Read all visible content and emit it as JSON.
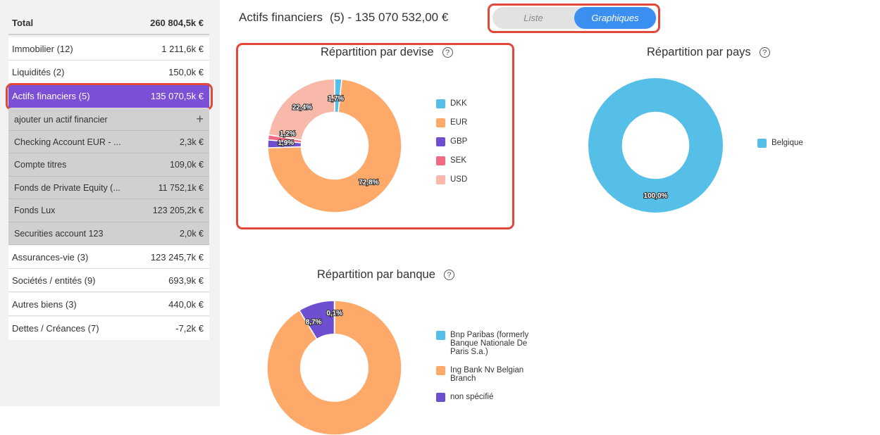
{
  "sidebar": {
    "total": {
      "label": "Total",
      "value": "260 804,5k €"
    },
    "items": [
      {
        "label": "Immobilier (12)",
        "value": "1 211,6k €"
      },
      {
        "label": "Liquidités (2)",
        "value": "150,0k €"
      },
      {
        "label": "Actifs financiers (5)",
        "value": "135 070,5k €"
      }
    ],
    "sub_add": "ajouter un actif financier",
    "sub_items": [
      {
        "label": "Checking Account EUR - ...",
        "value": "2,3k €"
      },
      {
        "label": "Compte titres",
        "value": "109,0k €"
      },
      {
        "label": "Fonds de Private Equity (...",
        "value": "11 752,1k €"
      },
      {
        "label": "Fonds Lux",
        "value": "123 205,2k €"
      },
      {
        "label": "Securities account 123",
        "value": "2,0k €"
      }
    ],
    "items_after": [
      {
        "label": "Assurances-vie (3)",
        "value": "123 245,7k €"
      },
      {
        "label": "Sociétés / entités (9)",
        "value": "693,9k €"
      },
      {
        "label": "Autres biens (3)",
        "value": "440,0k €"
      },
      {
        "label": "Dettes / Créances (7)",
        "value": "-7,2k €"
      }
    ]
  },
  "header": {
    "title": "Actifs financiers",
    "count": "(5) - 135 070 532,00 €",
    "toggle": {
      "list": "Liste",
      "charts": "Graphiques"
    }
  },
  "colors": {
    "accent": "#7b4fd6",
    "highlight": "#e0483a",
    "toggle_on": "#3b8ff0"
  },
  "chart_data": [
    {
      "type": "pie",
      "title": "Répartition par devise",
      "categories": [
        "DKK",
        "EUR",
        "GBP",
        "SEK",
        "USD"
      ],
      "values": [
        1.7,
        72.8,
        1.9,
        1.2,
        22.4
      ],
      "labels": [
        "1,7%",
        "72,8%",
        "1,9%",
        "1,2%",
        "22,4%"
      ],
      "colors": [
        "#55bfe8",
        "#fda96a",
        "#6e4fcf",
        "#f06b82",
        "#f9b9aa"
      ],
      "legend": "right"
    },
    {
      "type": "pie",
      "title": "Répartition par pays",
      "categories": [
        "Belgique"
      ],
      "values": [
        100.0
      ],
      "labels": [
        "100,0%"
      ],
      "colors": [
        "#55bfe8"
      ],
      "legend": "right"
    },
    {
      "type": "pie",
      "title": "Répartition par banque",
      "categories": [
        "Bnp Paribas (formerly Banque Nationale De Paris S.a.)",
        "Ing Bank Nv Belgian Branch",
        "non spécifié"
      ],
      "values": [
        0.1,
        91.2,
        8.7
      ],
      "labels": [
        "0,1%",
        "",
        "8,7%"
      ],
      "colors": [
        "#55bfe8",
        "#fda96a",
        "#6e4fcf"
      ],
      "legend": "right"
    }
  ]
}
